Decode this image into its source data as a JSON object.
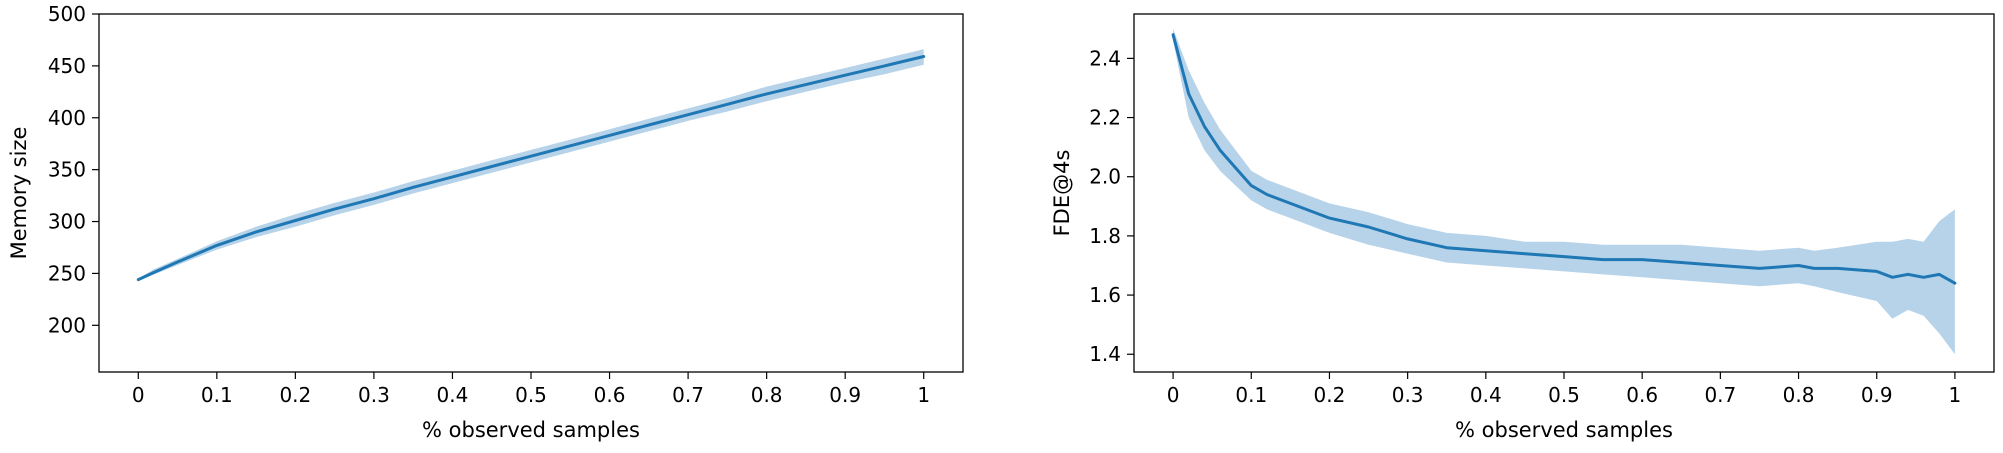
{
  "chart_data": [
    {
      "type": "line",
      "title": "",
      "xlabel": "% observed samples",
      "ylabel": "Memory size",
      "xlim": [
        -0.05,
        1.05
      ],
      "ylim": [
        155,
        500
      ],
      "xticks": [
        0,
        0.1,
        0.2,
        0.3,
        0.4,
        0.5,
        0.6,
        0.7,
        0.8,
        0.9,
        1
      ],
      "xtick_labels": [
        "0",
        "0.1",
        "0.2",
        "0.3",
        "0.4",
        "0.5",
        "0.6",
        "0.7",
        "0.8",
        "0.9",
        "1"
      ],
      "yticks": [
        200,
        250,
        300,
        350,
        400,
        450,
        500
      ],
      "ytick_labels": [
        "200",
        "250",
        "300",
        "350",
        "400",
        "450",
        "500"
      ],
      "grid": false,
      "legend": "none",
      "series": [
        {
          "color": "#1f77b4",
          "band_color": "#9ec4e3",
          "x": [
            0,
            0.02,
            0.05,
            0.1,
            0.15,
            0.2,
            0.25,
            0.3,
            0.35,
            0.4,
            0.45,
            0.5,
            0.55,
            0.6,
            0.65,
            0.7,
            0.75,
            0.8,
            0.85,
            0.9,
            0.95,
            1
          ],
          "mean": [
            244,
            251,
            261,
            277,
            290,
            301,
            312,
            322,
            333,
            343,
            353,
            363,
            373,
            383,
            393,
            403,
            413,
            423,
            432,
            441,
            450,
            459
          ],
          "lower": [
            243,
            249,
            258,
            273,
            285,
            295,
            306,
            316,
            327,
            337,
            347,
            357,
            367,
            377,
            387,
            397,
            406,
            416,
            425,
            434,
            442,
            451
          ],
          "upper": [
            245,
            254,
            264,
            281,
            295,
            307,
            318,
            328,
            339,
            349,
            359,
            369,
            379,
            389,
            399,
            409,
            419,
            430,
            439,
            448,
            457,
            466
          ]
        }
      ]
    },
    {
      "type": "line",
      "title": "",
      "xlabel": "% observed samples",
      "ylabel": "FDE@4s",
      "xlim": [
        -0.05,
        1.05
      ],
      "ylim": [
        1.34,
        2.55
      ],
      "xticks": [
        0,
        0.1,
        0.2,
        0.3,
        0.4,
        0.5,
        0.6,
        0.7,
        0.8,
        0.9,
        1
      ],
      "xtick_labels": [
        "0",
        "0.1",
        "0.2",
        "0.3",
        "0.4",
        "0.5",
        "0.6",
        "0.7",
        "0.8",
        "0.9",
        "1"
      ],
      "yticks": [
        1.4,
        1.6,
        1.8,
        2.0,
        2.2,
        2.4
      ],
      "ytick_labels": [
        "1.4",
        "1.6",
        "1.8",
        "2.0",
        "2.2",
        "2.4"
      ],
      "grid": false,
      "legend": "none",
      "series": [
        {
          "color": "#1f77b4",
          "band_color": "#9ec4e3",
          "x": [
            0,
            0.02,
            0.04,
            0.06,
            0.08,
            0.1,
            0.12,
            0.15,
            0.2,
            0.25,
            0.3,
            0.35,
            0.4,
            0.45,
            0.5,
            0.55,
            0.6,
            0.65,
            0.7,
            0.75,
            0.8,
            0.82,
            0.85,
            0.9,
            0.92,
            0.94,
            0.96,
            0.98,
            1
          ],
          "mean": [
            2.48,
            2.28,
            2.17,
            2.09,
            2.03,
            1.97,
            1.94,
            1.91,
            1.86,
            1.83,
            1.79,
            1.76,
            1.75,
            1.74,
            1.73,
            1.72,
            1.72,
            1.71,
            1.7,
            1.69,
            1.7,
            1.69,
            1.69,
            1.68,
            1.66,
            1.67,
            1.66,
            1.67,
            1.64
          ],
          "lower": [
            2.46,
            2.2,
            2.09,
            2.02,
            1.97,
            1.92,
            1.89,
            1.86,
            1.81,
            1.77,
            1.74,
            1.71,
            1.7,
            1.69,
            1.68,
            1.67,
            1.66,
            1.65,
            1.64,
            1.63,
            1.64,
            1.63,
            1.61,
            1.58,
            1.52,
            1.55,
            1.53,
            1.47,
            1.4
          ],
          "upper": [
            2.5,
            2.36,
            2.25,
            2.16,
            2.09,
            2.02,
            1.99,
            1.96,
            1.91,
            1.88,
            1.84,
            1.81,
            1.8,
            1.78,
            1.78,
            1.77,
            1.77,
            1.77,
            1.76,
            1.75,
            1.76,
            1.75,
            1.76,
            1.78,
            1.78,
            1.79,
            1.78,
            1.85,
            1.89
          ]
        }
      ]
    }
  ]
}
